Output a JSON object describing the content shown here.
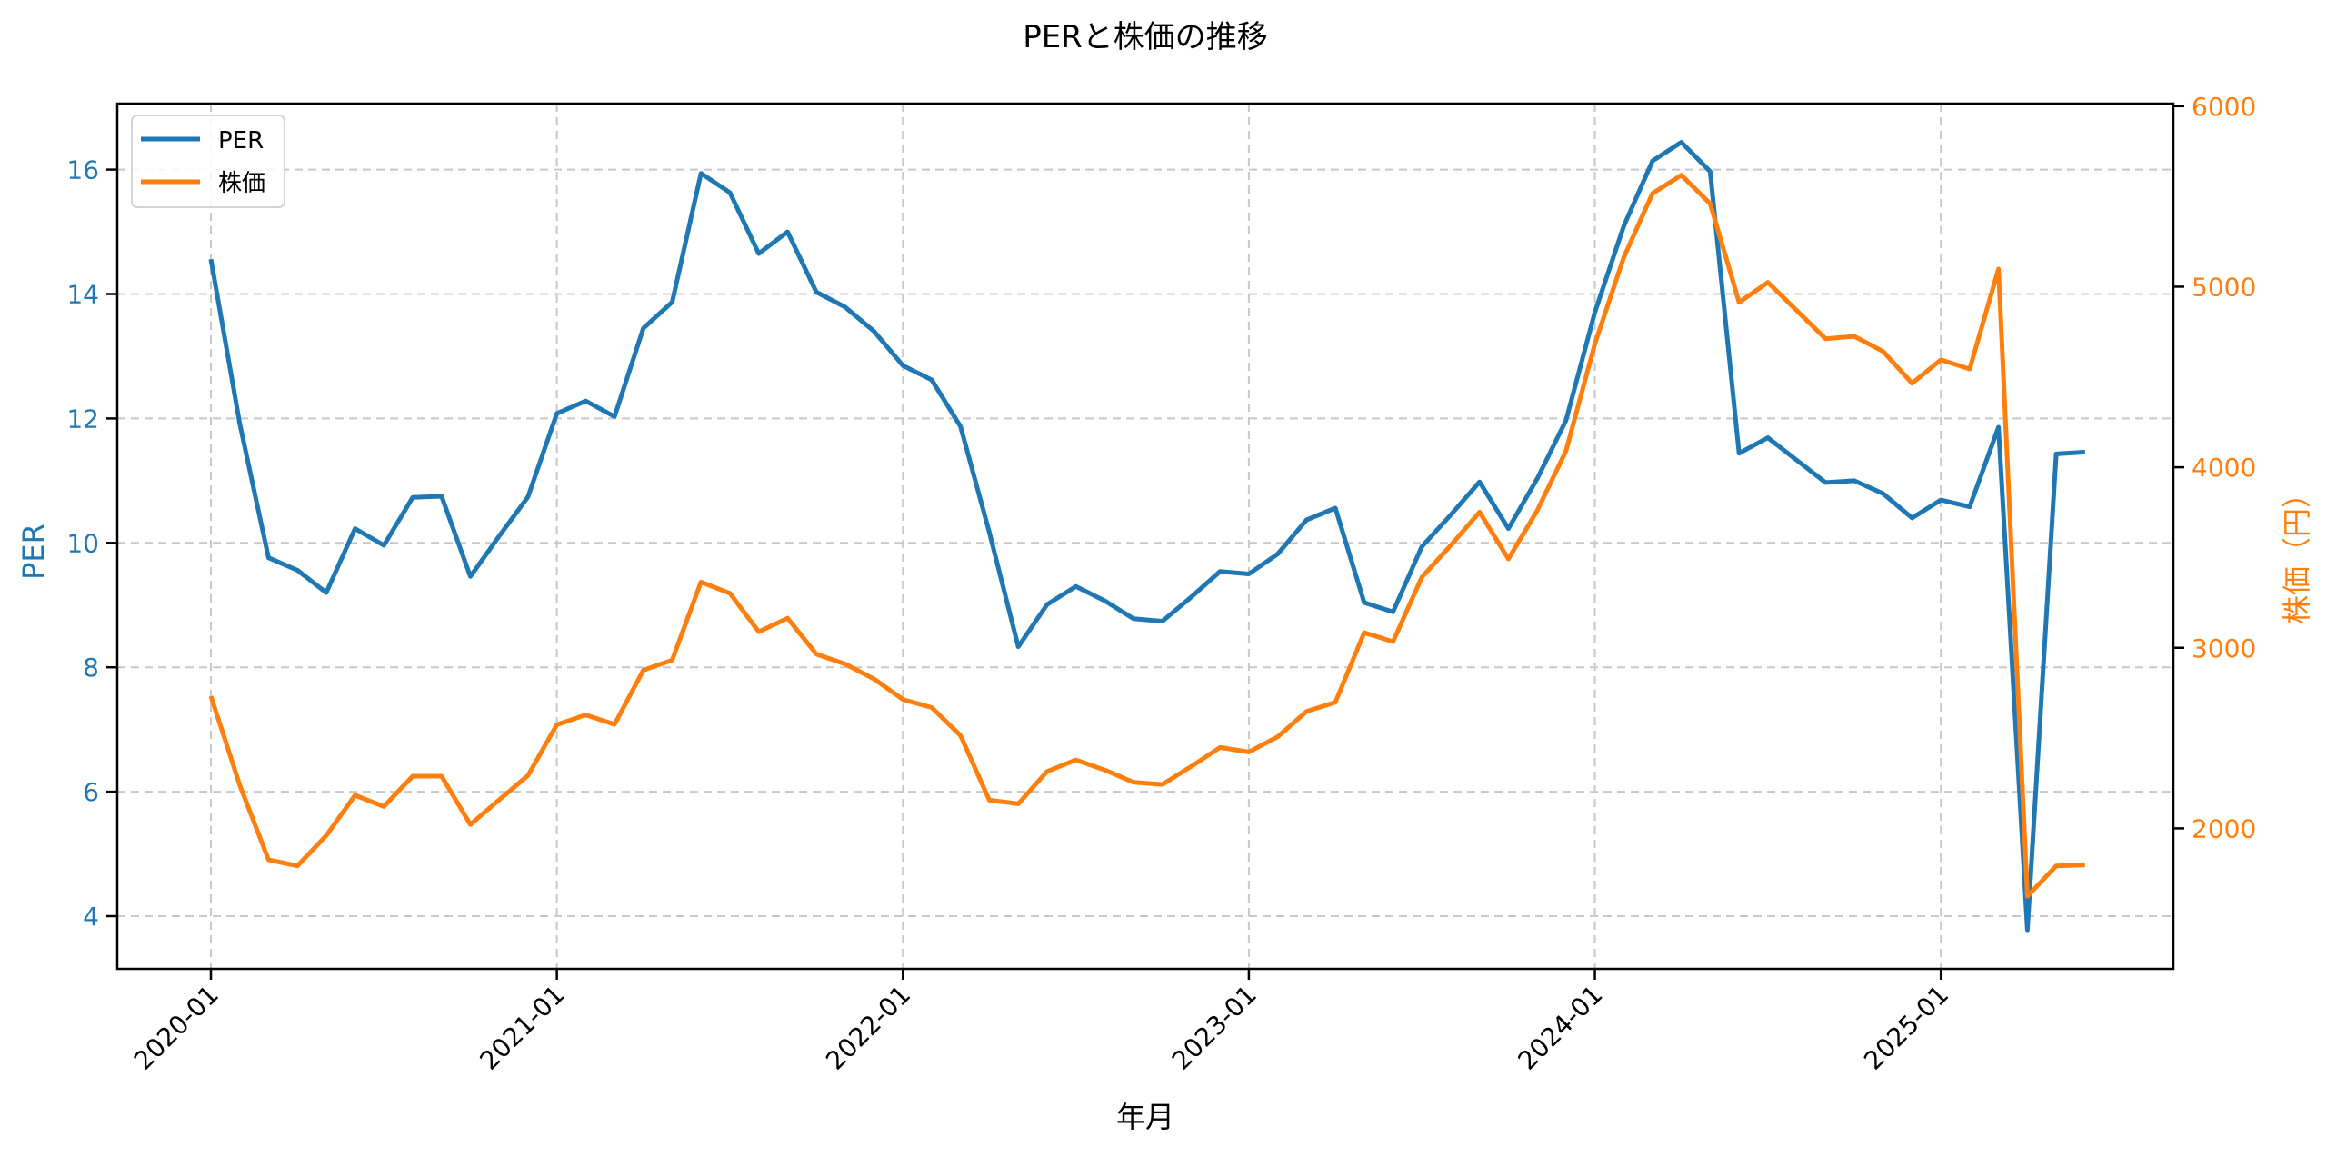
{
  "chart_data": {
    "type": "line",
    "title": "PERと株価の推移",
    "xlabel": "年月",
    "ylabel": "PER",
    "ylabel_right": "株価（円）",
    "x_tick_labels": [
      "2020-01",
      "2021-01",
      "2022-01",
      "2023-01",
      "2024-01",
      "2025-01"
    ],
    "y_ticks_left": [
      4,
      6,
      8,
      10,
      12,
      14,
      16
    ],
    "y_ticks_right": [
      2000,
      3000,
      4000,
      5000,
      6000
    ],
    "ylim_left": [
      3.1,
      17.06
    ],
    "ylim_right": [
      1260,
      6085
    ],
    "grid": true,
    "legend_position": "upper left",
    "x": [
      "2020-01",
      "2020-02",
      "2020-03",
      "2020-04",
      "2020-05",
      "2020-06",
      "2020-07",
      "2020-08",
      "2020-09",
      "2020-10",
      "2020-11",
      "2020-12",
      "2021-01",
      "2021-02",
      "2021-03",
      "2021-04",
      "2021-05",
      "2021-06",
      "2021-07",
      "2021-08",
      "2021-09",
      "2021-10",
      "2021-11",
      "2021-12",
      "2022-01",
      "2022-02",
      "2022-03",
      "2022-04",
      "2022-05",
      "2022-06",
      "2022-07",
      "2022-08",
      "2022-09",
      "2022-10",
      "2022-11",
      "2022-12",
      "2023-01",
      "2023-02",
      "2023-03",
      "2023-04",
      "2023-05",
      "2023-06",
      "2023-07",
      "2023-08",
      "2023-09",
      "2023-10",
      "2023-11",
      "2023-12",
      "2024-01",
      "2024-02",
      "2024-03",
      "2024-04",
      "2024-05",
      "2024-06",
      "2024-07",
      "2024-08",
      "2024-09",
      "2024-10",
      "2024-11",
      "2024-12",
      "2025-01",
      "2025-02",
      "2025-03",
      "2025-04",
      "2025-05",
      "2025-06"
    ],
    "series": [
      {
        "name": "PER",
        "axis": "left",
        "color": "#1f77b4",
        "values": [
          14.56,
          11.92,
          9.76,
          9.56,
          9.2,
          10.23,
          9.96,
          10.73,
          10.75,
          9.46,
          10.11,
          10.74,
          12.08,
          12.28,
          12.03,
          13.45,
          13.87,
          15.94,
          15.63,
          14.65,
          15.0,
          14.03,
          13.79,
          13.4,
          12.85,
          12.62,
          11.87,
          10.17,
          8.33,
          9.01,
          9.3,
          9.07,
          8.78,
          8.74,
          9.13,
          9.54,
          9.5,
          9.82,
          10.37,
          10.56,
          9.04,
          8.89,
          9.94,
          10.45,
          10.98,
          10.23,
          11.03,
          11.97,
          13.71,
          15.09,
          16.14,
          16.44,
          15.97,
          11.44,
          11.69,
          11.33,
          10.97,
          11.0,
          10.79,
          10.4,
          10.69,
          10.58,
          11.86,
          3.78,
          11.43,
          11.46
        ]
      },
      {
        "name": "株価",
        "axis": "right",
        "color": "#ff7f0e",
        "values": [
          2732,
          2240,
          1826,
          1792,
          1960,
          2183,
          2121,
          2289,
          2289,
          2021,
          2158,
          2293,
          2574,
          2628,
          2576,
          2876,
          2932,
          3364,
          3302,
          3089,
          3164,
          2965,
          2910,
          2827,
          2714,
          2669,
          2514,
          2156,
          2136,
          2315,
          2379,
          2323,
          2255,
          2243,
          2343,
          2448,
          2423,
          2507,
          2648,
          2698,
          3084,
          3034,
          3391,
          3567,
          3752,
          3492,
          3760,
          4091,
          4684,
          5162,
          5517,
          5618,
          5460,
          4913,
          5024,
          4868,
          4712,
          4725,
          4641,
          4465,
          4595,
          4544,
          5098,
          1624,
          1792,
          1797
        ]
      }
    ]
  },
  "legend": {
    "items": [
      {
        "label": "PER",
        "color": "#1f77b4"
      },
      {
        "label": "株価",
        "color": "#ff7f0e"
      }
    ]
  },
  "colors": {
    "per": "#1f77b4",
    "price": "#ff7f0e",
    "grid": "#c8c8c8",
    "axis": "#000000"
  }
}
